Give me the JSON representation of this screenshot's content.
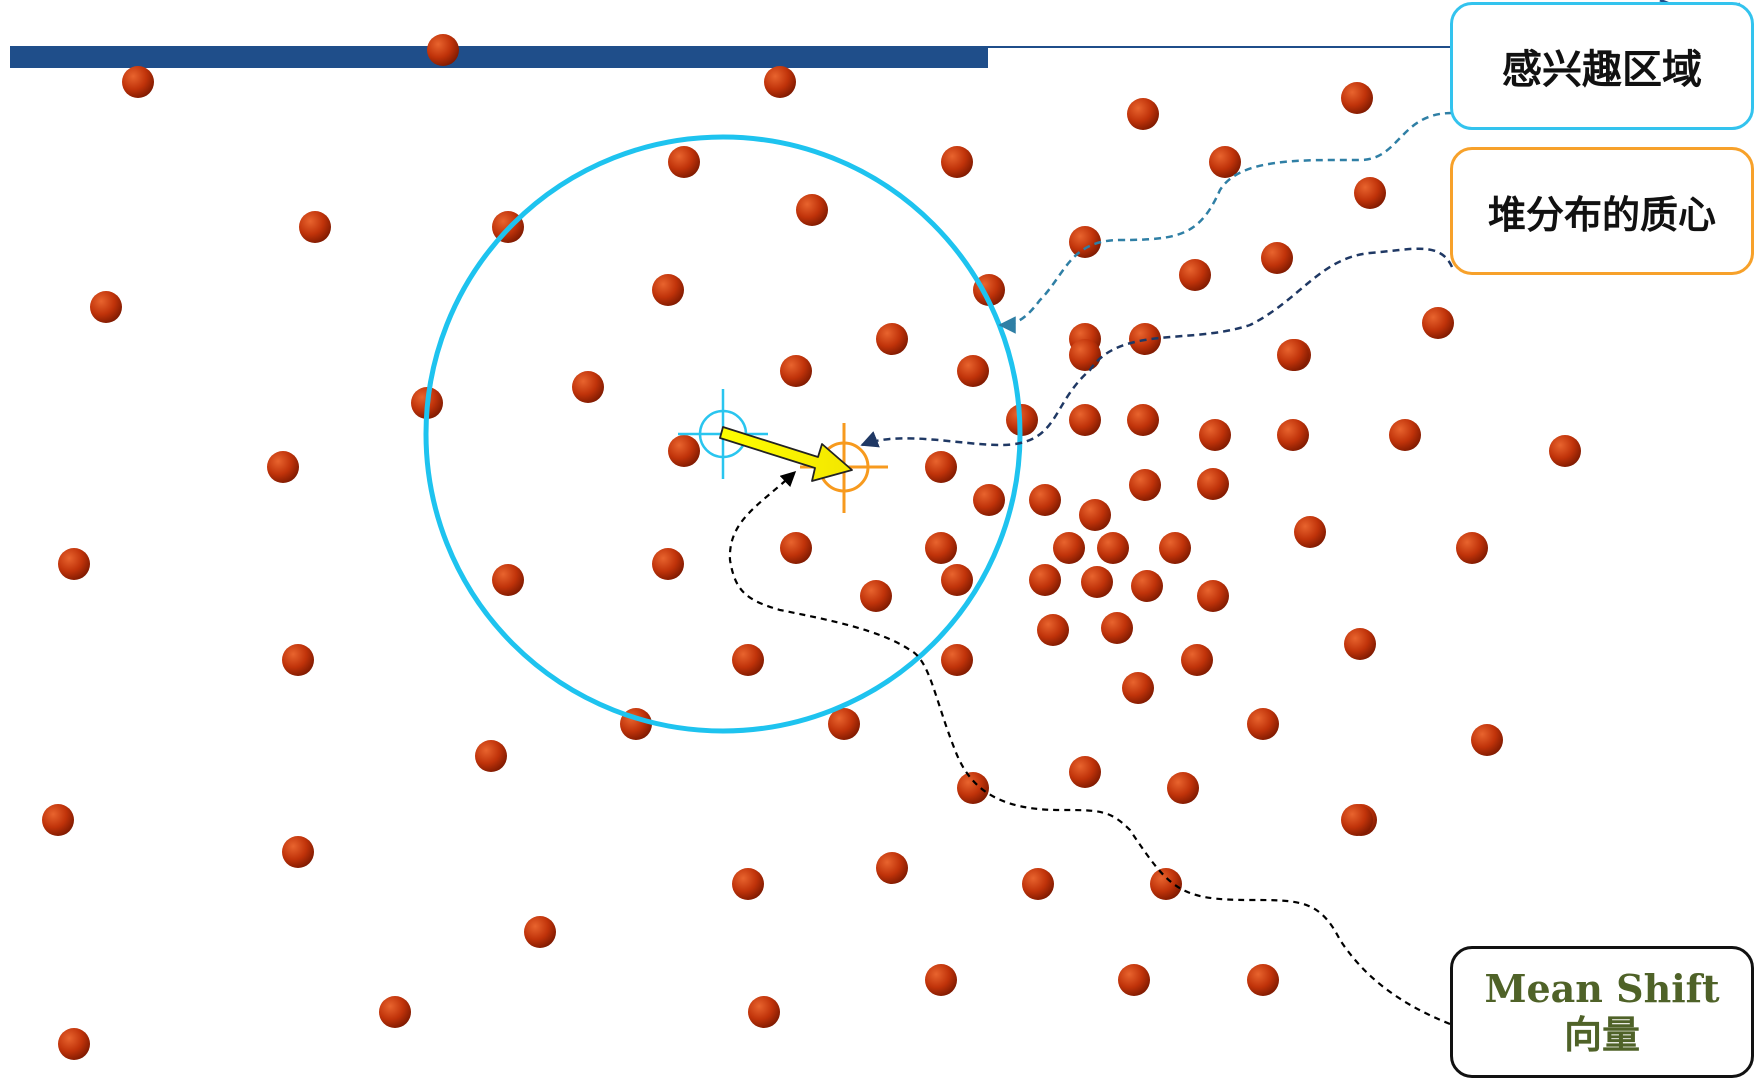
{
  "labels": {
    "roi": "感兴趣区域",
    "centroid": "堆分布的质心",
    "mean_shift_line1": "Mean Shift",
    "mean_shift_line2": "向量"
  },
  "colors": {
    "point": "#c0330a",
    "point_dark": "#7a1800",
    "roi_circle": "#1ec3ef",
    "initial_center": "#29c5ef",
    "centroid": "#f79a1e",
    "shift_arrow": "#ffff00",
    "top_bar": "#1f4e8a",
    "leader_roi": "#2f7fa5",
    "leader_centroid": "#1f3864",
    "leader_mean_shift": "#000000"
  },
  "icons": {
    "initial_center": "crosshair-icon",
    "centroid": "crosshair-icon",
    "shift_vector": "arrow-right-icon"
  }
}
